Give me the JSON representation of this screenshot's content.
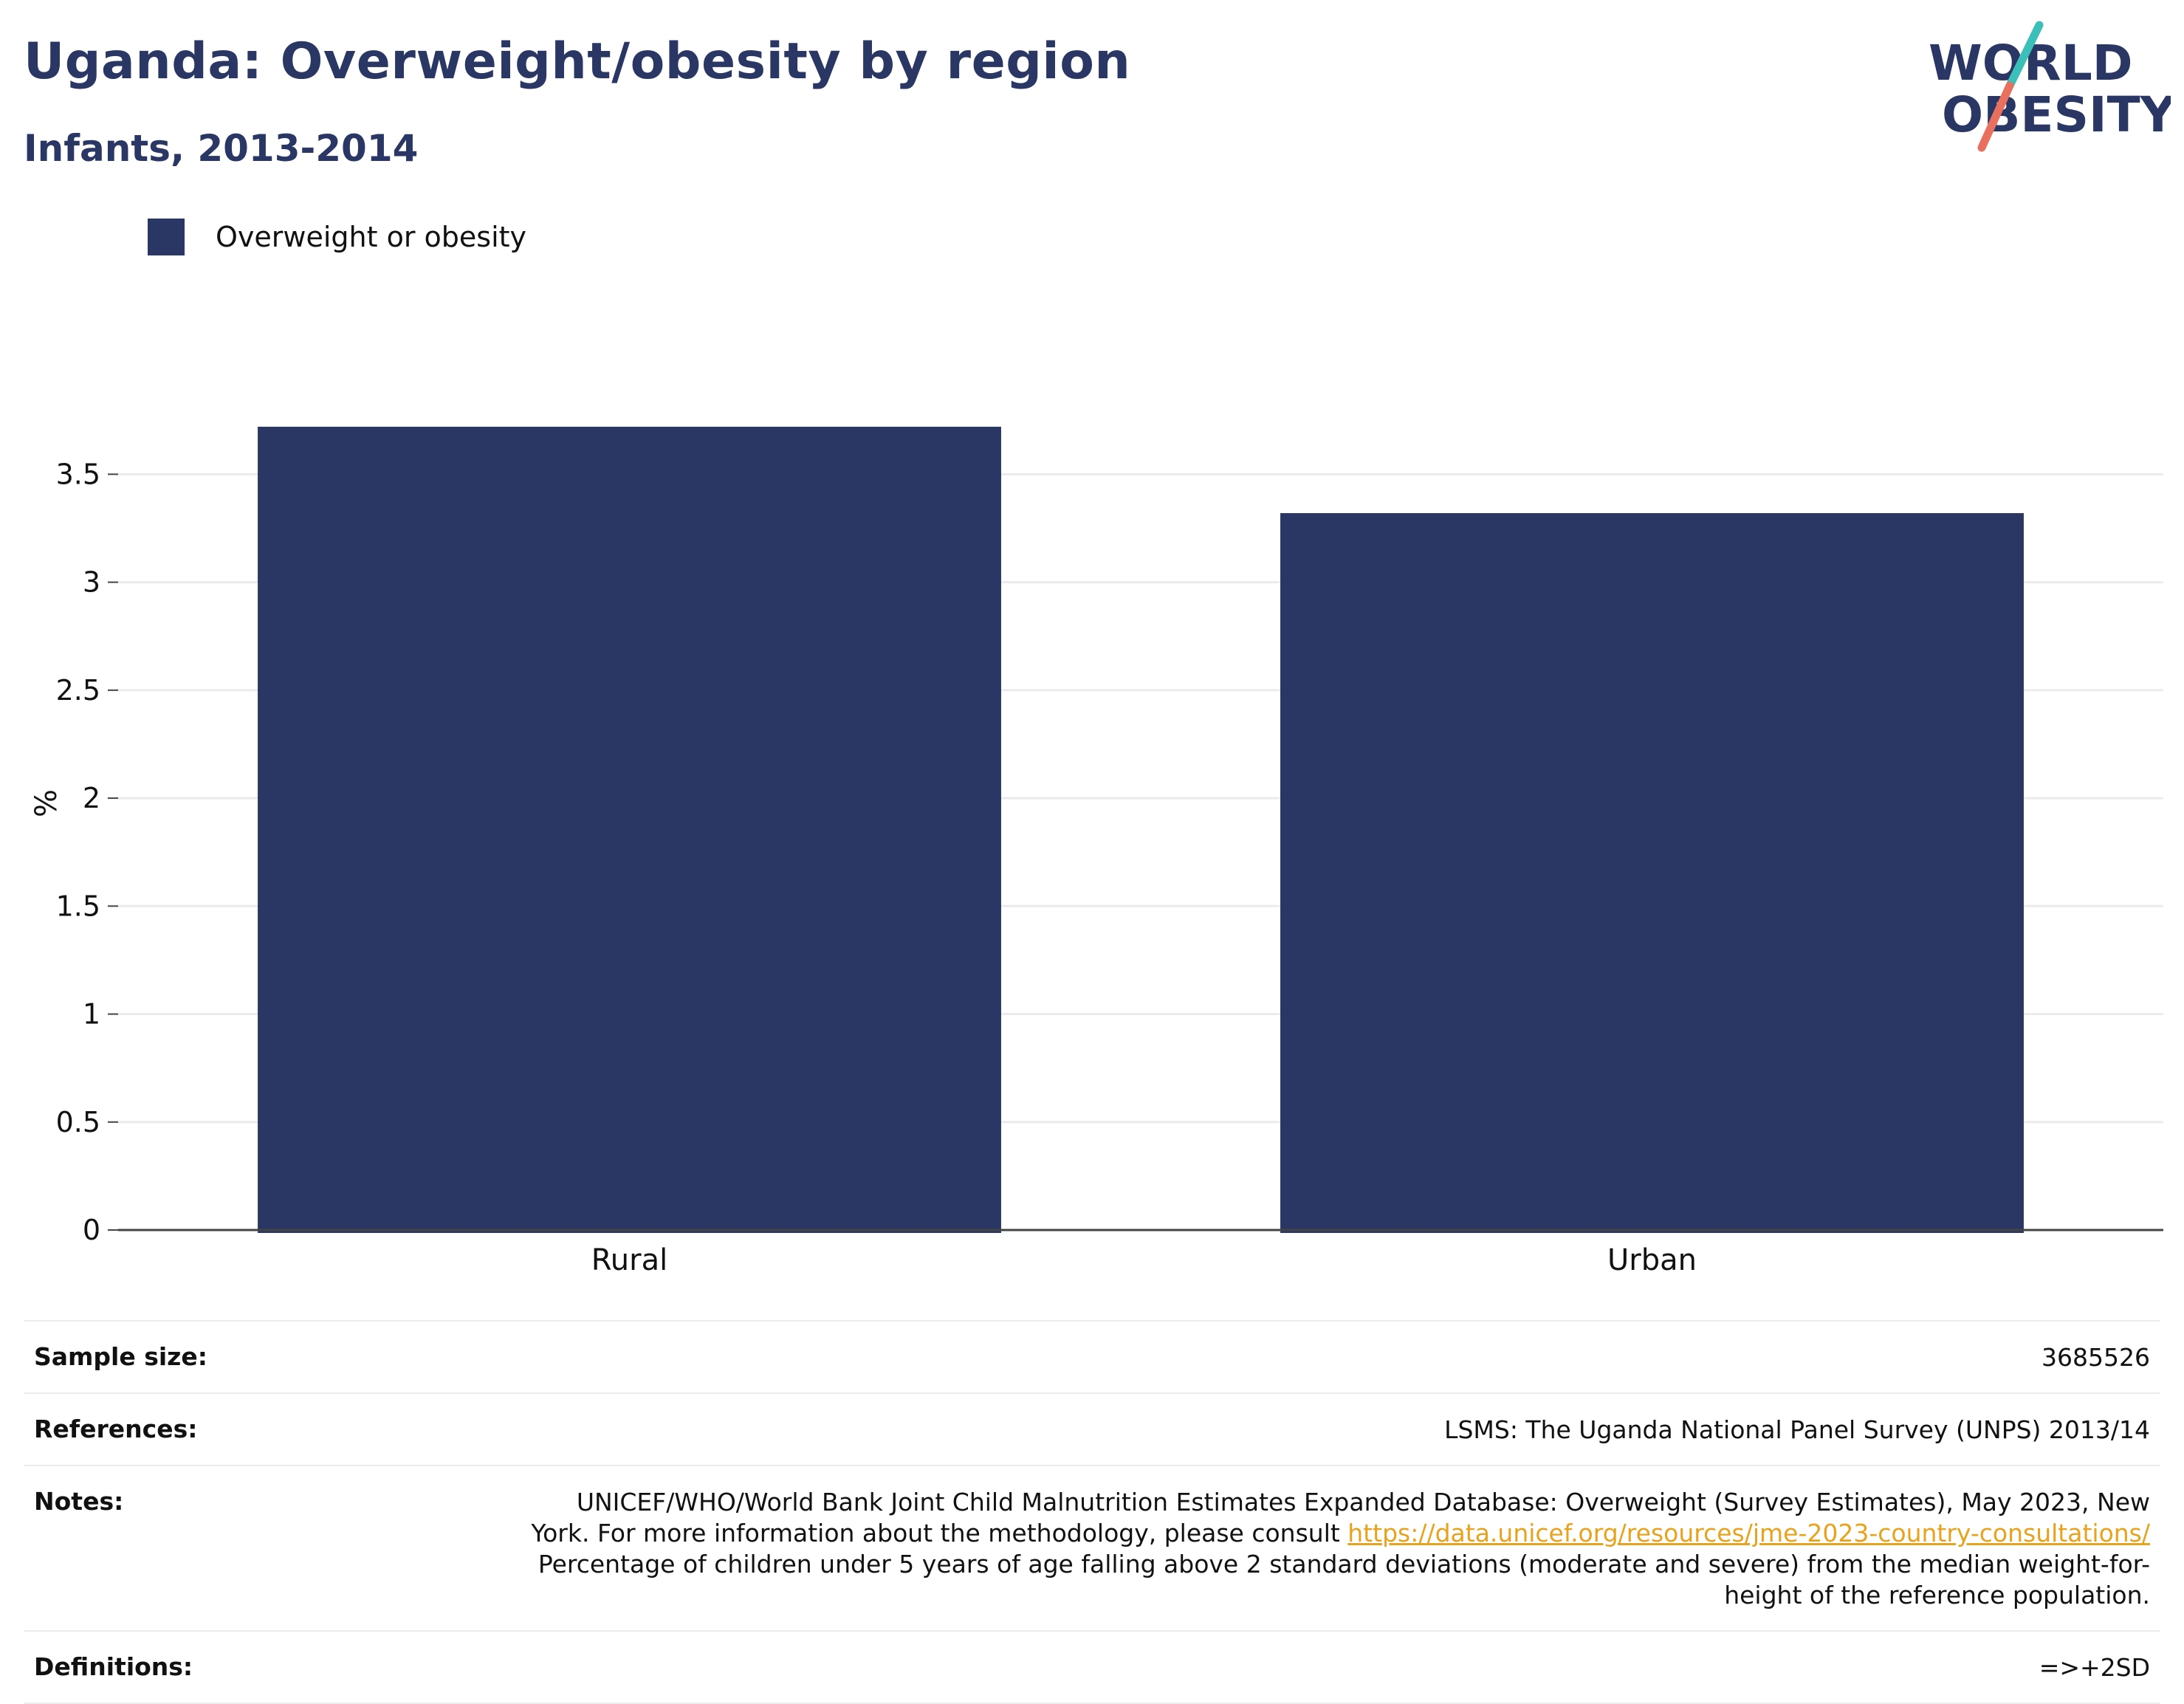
{
  "header": {
    "title": "Uganda: Overweight/obesity by region",
    "subtitle": "Infants, 2013-2014"
  },
  "logo": {
    "line1": "WORLD",
    "line2": "OBESITY",
    "accent_teal": "#3bbfb8",
    "accent_coral": "#e8705f"
  },
  "colors": {
    "bar": "#2a3663",
    "grid": "#ebebeb",
    "axis": "#444444",
    "link": "#e8a21b"
  },
  "chart_data": {
    "type": "bar",
    "categories": [
      "Rural",
      "Urban"
    ],
    "series": [
      {
        "name": "Overweight or obesity",
        "values": [
          3.72,
          3.32
        ]
      }
    ],
    "ylabel": "%",
    "xlabel": "",
    "ylim": [
      0,
      3.85
    ],
    "yticks": [
      0,
      0.5,
      1,
      1.5,
      2,
      2.5,
      3,
      3.5
    ],
    "ytick_labels": [
      "0",
      "0.5",
      "1",
      "1.5",
      "2",
      "2.5",
      "3",
      "3.5"
    ],
    "grid": true,
    "legend": "top-left"
  },
  "meta": {
    "sample_size_label": "Sample size:",
    "sample_size_value": "3685526",
    "references_label": "References:",
    "references_value": "LSMS: The Uganda National Panel Survey (UNPS) 2013/14",
    "notes_label": "Notes:",
    "notes_text_before": "UNICEF/WHO/World Bank Joint Child Malnutrition Estimates Expanded Database: Overweight (Survey Estimates), May 2023, New York. For more information about the methodology, please consult ",
    "notes_link": "https://data.unicef.org/resources/jme-2023-country-consultations/",
    "notes_text_after": "Percentage of children under 5 years of age falling above 2 standard deviations (moderate and severe) from the median weight-for-height of the reference population.",
    "definitions_label": "Definitions:",
    "definitions_value": "=>+2SD"
  }
}
